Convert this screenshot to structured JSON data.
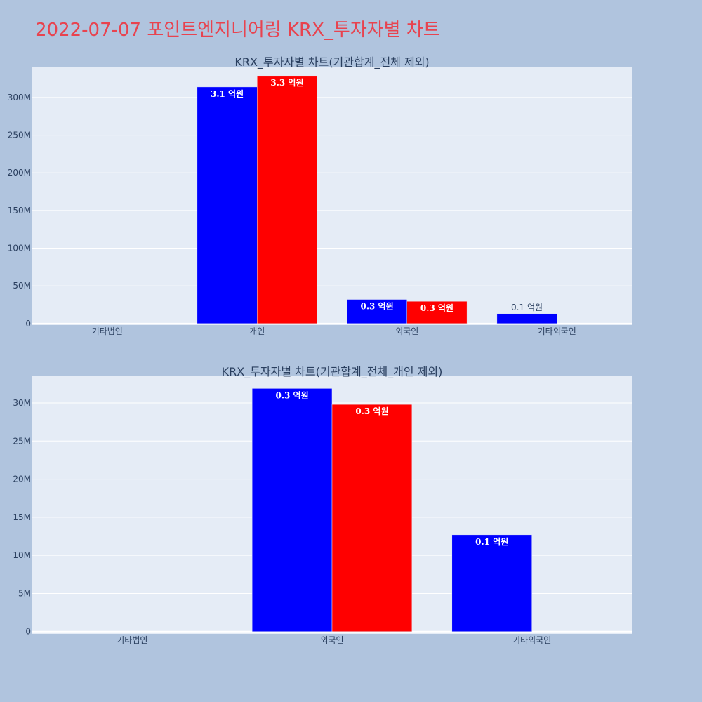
{
  "page": {
    "title": "2022-07-07 포인트엔지니어링 KRX_투자자별 차트"
  },
  "chart_data": [
    {
      "type": "bar",
      "title": "KRX_투자자별 차트(기관합계_전체 제외)",
      "categories": [
        "기타법인",
        "개인",
        "외국인",
        "기타외국인"
      ],
      "y_ticks": [
        0,
        50000000,
        100000000,
        150000000,
        200000000,
        250000000,
        300000000
      ],
      "y_tick_labels": [
        "0",
        "50M",
        "100M",
        "150M",
        "200M",
        "250M",
        "300M"
      ],
      "ylim": [
        -2000000,
        340000000
      ],
      "grid": true,
      "series": [
        {
          "color": "#0000ff",
          "values": [
            0,
            314000000,
            32000000,
            13000000
          ],
          "labels": [
            "",
            "3.1 억원",
            "0.3 억원",
            "0.1 억원"
          ]
        },
        {
          "color": "#ff0000",
          "values": [
            0,
            329000000,
            29500000,
            null
          ],
          "labels": [
            "",
            "3.3 억원",
            "0.3 억원",
            ""
          ]
        }
      ]
    },
    {
      "type": "bar",
      "title": "KRX_투자자별 차트(기관합계_전체_개인 제외)",
      "categories": [
        "기타법인",
        "외국인",
        "기타외국인"
      ],
      "y_ticks": [
        0,
        5000000,
        10000000,
        15000000,
        20000000,
        25000000,
        30000000
      ],
      "y_tick_labels": [
        "0",
        "5M",
        "10M",
        "15M",
        "20M",
        "25M",
        "30M"
      ],
      "ylim": [
        -300000,
        33500000
      ],
      "grid": true,
      "series": [
        {
          "color": "#0000ff",
          "values": [
            0,
            31900000,
            12700000
          ],
          "labels": [
            "",
            "0.3 억원",
            "0.1 억원"
          ]
        },
        {
          "color": "#ff0000",
          "values": [
            0,
            29800000,
            null
          ],
          "labels": [
            "",
            "0.3 억원",
            ""
          ]
        }
      ]
    }
  ]
}
